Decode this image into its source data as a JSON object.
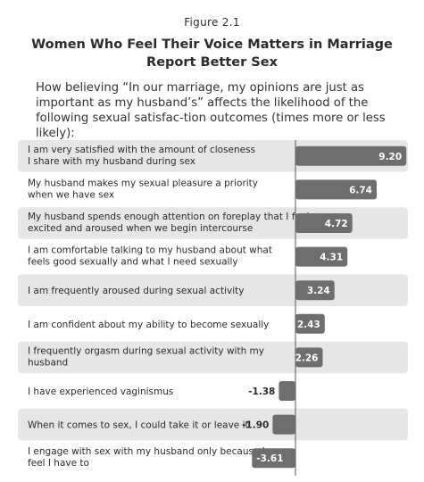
{
  "figure_label": "Figure 2.1",
  "title_line1": "Women Who Feel Their Voice Matters in Marriage",
  "title_line2": "Report Better Sex",
  "subtitle": "How believing “In our marriage, my opinions are just as important as my husband’s” affects the likelihood of the following sexual satisfac-tion outcomes (times more or less likely):",
  "colors": {
    "bar": "#6e6e6e",
    "row_band": "#e6e6e6",
    "axis": "#555555"
  },
  "chart_data": {
    "type": "bar",
    "orientation": "horizontal",
    "title": "Women Who Feel Their Voice Matters in Marriage Report Better Sex",
    "categories": [
      [
        "I am very satisfied with the amount of closeness",
        "I share with my husband during sex"
      ],
      [
        "My husband makes my sexual pleasure a priority",
        "when we have sex"
      ],
      [
        "My husband spends enough attention on foreplay that I feel",
        "excited and aroused when we begin intercourse"
      ],
      [
        "I am comfortable talking to my husband about what",
        "feels good sexually and what I need sexually"
      ],
      [
        "I am frequently aroused during sexual activity"
      ],
      [
        "I am confident about my ability to become sexually"
      ],
      [
        "I frequently orgasm during sexual activity with my",
        "husband"
      ],
      [
        "I have experienced vaginismus"
      ],
      [
        "When it comes to sex, I could take it or leave it"
      ],
      [
        "I engage with sex with my husband only because I",
        "feel I have to"
      ]
    ],
    "values": [
      9.2,
      6.74,
      4.72,
      4.31,
      3.24,
      2.43,
      2.26,
      -1.38,
      -1.9,
      -3.61
    ],
    "value_labels": [
      "9.20",
      "6.74",
      "4.72",
      "4.31",
      "3.24",
      "2.43",
      "2.26",
      "-1.38",
      "-1.90",
      "-3.61"
    ],
    "alternating_row_bands": true
  }
}
